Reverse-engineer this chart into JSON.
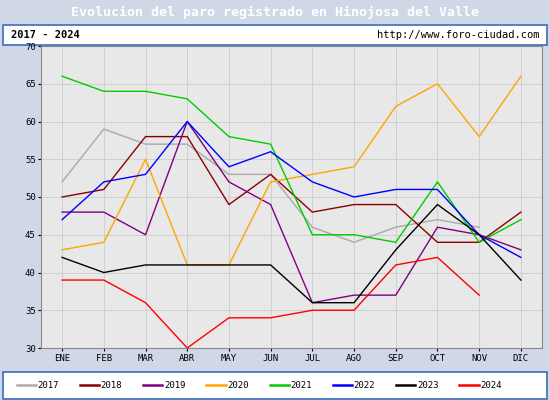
{
  "title": "Evolucion del paro registrado en Hinojosa del Valle",
  "subtitle_left": "2017 - 2024",
  "subtitle_right": "http://www.foro-ciudad.com",
  "months": [
    "ENE",
    "FEB",
    "MAR",
    "ABR",
    "MAY",
    "JUN",
    "JUL",
    "AGO",
    "SEP",
    "OCT",
    "NOV",
    "DIC"
  ],
  "ylim": [
    30,
    70
  ],
  "yticks": [
    30,
    35,
    40,
    45,
    50,
    55,
    60,
    65,
    70
  ],
  "series": {
    "2017": {
      "color": "#aaaaaa",
      "values": [
        52,
        59,
        57,
        57,
        53,
        53,
        46,
        44,
        46,
        47,
        46,
        null
      ]
    },
    "2018": {
      "color": "#8b0000",
      "values": [
        50,
        51,
        58,
        58,
        49,
        53,
        48,
        49,
        49,
        44,
        44,
        48
      ]
    },
    "2019": {
      "color": "#800080",
      "values": [
        48,
        48,
        45,
        60,
        52,
        49,
        36,
        37,
        37,
        46,
        45,
        43
      ]
    },
    "2020": {
      "color": "#ffa500",
      "values": [
        43,
        44,
        55,
        41,
        41,
        52,
        53,
        54,
        62,
        65,
        58,
        66
      ]
    },
    "2021": {
      "color": "#00cc00",
      "values": [
        66,
        64,
        64,
        63,
        58,
        57,
        45,
        45,
        44,
        52,
        44,
        47
      ]
    },
    "2022": {
      "color": "#0000ff",
      "values": [
        47,
        52,
        53,
        60,
        54,
        56,
        52,
        50,
        51,
        51,
        45,
        42
      ]
    },
    "2023": {
      "color": "#000000",
      "values": [
        42,
        40,
        41,
        41,
        41,
        41,
        36,
        36,
        43,
        49,
        45,
        39
      ]
    },
    "2024": {
      "color": "#ff0000",
      "values": [
        39,
        39,
        36,
        30,
        34,
        34,
        35,
        35,
        41,
        42,
        37,
        null
      ]
    }
  },
  "title_bg": "#3c6dbf",
  "title_color": "#ffffff",
  "fig_bg": "#d0d8e8",
  "chart_bg": "#e8e8e8",
  "legend_border": "#3c6dbf",
  "grid_color": "#cccccc"
}
